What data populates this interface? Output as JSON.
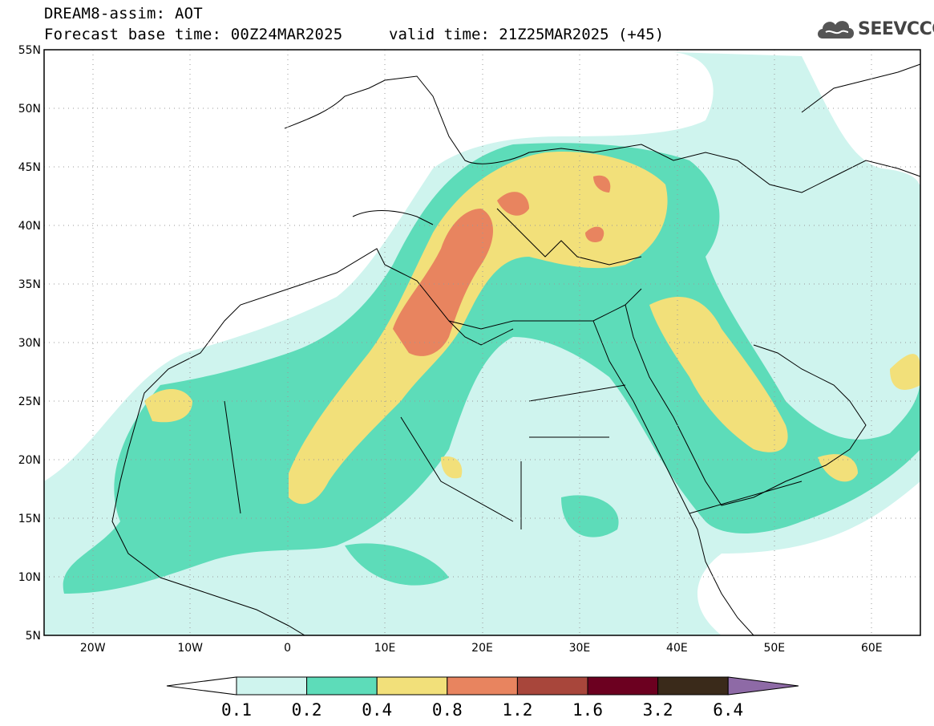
{
  "header": {
    "title": "DREAM8-assim: AOT",
    "base_time": "Forecast base time: 00Z24MAR2025",
    "valid_time": "valid time: 21Z25MAR2025 (+45)"
  },
  "logo": {
    "text": "SEEVCCC",
    "icon": "cloud-icon"
  },
  "map": {
    "lat_ticks": [
      "55N",
      "50N",
      "45N",
      "40N",
      "35N",
      "30N",
      "25N",
      "20N",
      "15N",
      "10N",
      "5N"
    ],
    "lon_ticks": [
      "20W",
      "10W",
      "0",
      "10E",
      "20E",
      "30E",
      "40E",
      "50E",
      "60E"
    ],
    "lat_values": [
      55,
      50,
      45,
      40,
      35,
      30,
      25,
      20,
      15,
      10,
      5
    ],
    "lon_values": [
      -20,
      -10,
      0,
      10,
      20,
      30,
      40,
      50,
      60
    ],
    "extent": {
      "lon_min": -25,
      "lon_max": 65,
      "lat_min": 5,
      "lat_max": 55
    },
    "grid": true
  },
  "colorbar": {
    "labels": [
      "0.1",
      "0.2",
      "0.4",
      "0.8",
      "1.2",
      "1.6",
      "3.2",
      "6.4"
    ],
    "colors": [
      "#ffffff",
      "#cff4ee",
      "#5ddcb9",
      "#f2e07a",
      "#e8845f",
      "#a8463b",
      "#6c0020",
      "#3a2a1a",
      "#8e6aa6"
    ]
  },
  "colors": {
    "c1": "#cff4ee",
    "c2": "#5ddcb9",
    "c3": "#f2e07a",
    "c4": "#e8845f"
  }
}
